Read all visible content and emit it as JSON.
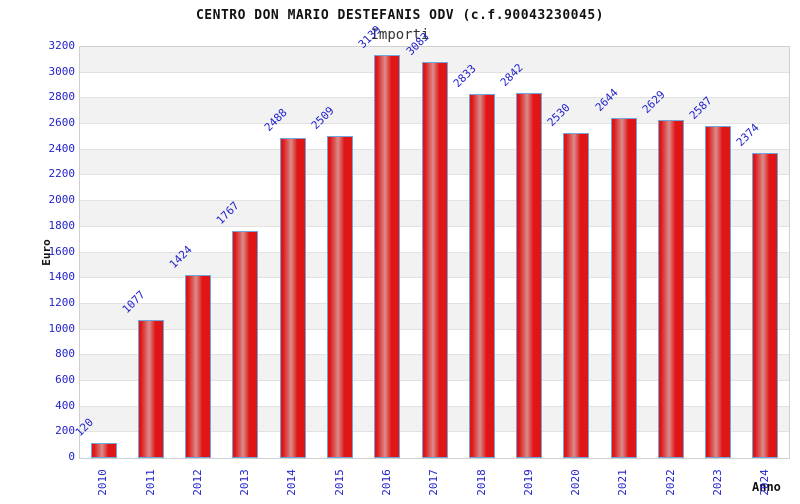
{
  "header": {
    "title": "CENTRO DON MARIO DESTEFANIS ODV (c.f.90043230045)",
    "subtitle": "Importi"
  },
  "chart_data": {
    "type": "bar",
    "title": "CENTRO DON MARIO DESTEFANIS ODV (c.f.90043230045)",
    "subtitle": "Importi",
    "xlabel": "Anno",
    "ylabel": "Euro",
    "categories": [
      "2010",
      "2011",
      "2012",
      "2013",
      "2014",
      "2015",
      "2016",
      "2017",
      "2018",
      "2019",
      "2020",
      "2021",
      "2022",
      "2023",
      "2024"
    ],
    "values": [
      120,
      1077,
      1424,
      1767,
      2488,
      2509,
      3139,
      3083,
      2833,
      2842,
      2530,
      2644,
      2629,
      2587,
      2374
    ],
    "ylim": [
      0,
      3200
    ],
    "ytick_step": 200,
    "grid": true,
    "legend_position": "none",
    "colors": {
      "tick_label": "#2323cc",
      "bar_edge_red": "#e01515",
      "bar_center_red": "#d98c8c",
      "bar_border_blue": "#6ea6dd",
      "band_gray": "#f2f2f2",
      "band_white": "#ffffff",
      "gridline": "#e2e2e2",
      "plot_border": "#cfcfcf",
      "title_text": "#111111"
    }
  }
}
